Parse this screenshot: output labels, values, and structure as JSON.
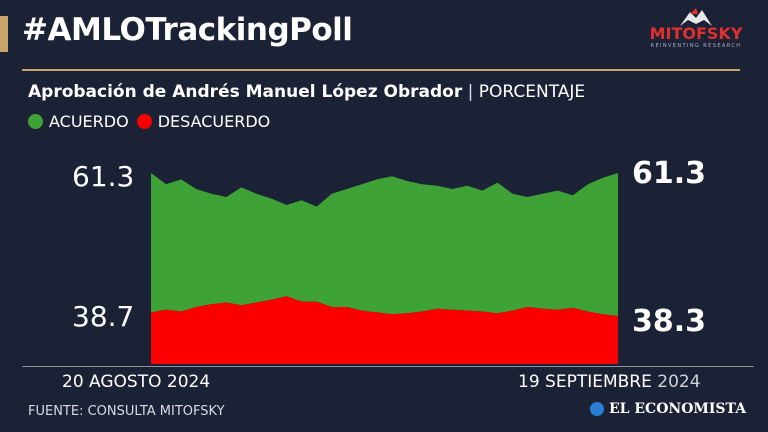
{
  "headline": "#AMLOTrackingPoll",
  "logo": {
    "brand": "MITOFSKY",
    "tagline": "REINVENTING RESEARCH"
  },
  "subtitle": {
    "bold": "Aprobación de Andrés Manuel López Obrador",
    "separator": "|",
    "unit": "PORCENTAJE"
  },
  "colors": {
    "acuerdo": "#3ea236",
    "desacuerdo": "#fa0000",
    "background": "#1b2235",
    "accent": "#c8a46a"
  },
  "chart_data": {
    "type": "area",
    "series": [
      {
        "name": "ACUERDO",
        "values": [
          61.3,
          60.6,
          60.9,
          60.3,
          60.0,
          59.8,
          60.4,
          60.0,
          59.7,
          59.3,
          59.6,
          59.2,
          60.0,
          60.3,
          60.6,
          60.9,
          61.1,
          60.8,
          60.6,
          60.5,
          60.3,
          60.5,
          60.2,
          60.7,
          60.0,
          59.8,
          60.0,
          60.2,
          59.9,
          60.6,
          61.0,
          61.3
        ]
      },
      {
        "name": "DESACUERDO",
        "values": [
          38.7,
          39.0,
          38.8,
          39.3,
          39.6,
          39.8,
          39.5,
          39.8,
          40.1,
          40.5,
          39.9,
          39.9,
          39.3,
          39.3,
          38.9,
          38.7,
          38.5,
          38.6,
          38.8,
          39.1,
          39.0,
          38.9,
          38.8,
          38.6,
          38.9,
          39.3,
          39.1,
          39.0,
          39.2,
          38.8,
          38.5,
          38.3
        ]
      }
    ],
    "start_labels": {
      "acuerdo": "61.3",
      "desacuerdo": "38.7"
    },
    "end_labels": {
      "acuerdo": "61.3",
      "desacuerdo": "38.3"
    },
    "x_start": "20 AGOSTO 2024",
    "x_end": "19 SEPTIEMBRE",
    "x_end_year": "2024"
  },
  "footer": {
    "source": "FUENTE: CONSULTA MITOFSKY",
    "publisher": "EL ECONOMISTA"
  }
}
